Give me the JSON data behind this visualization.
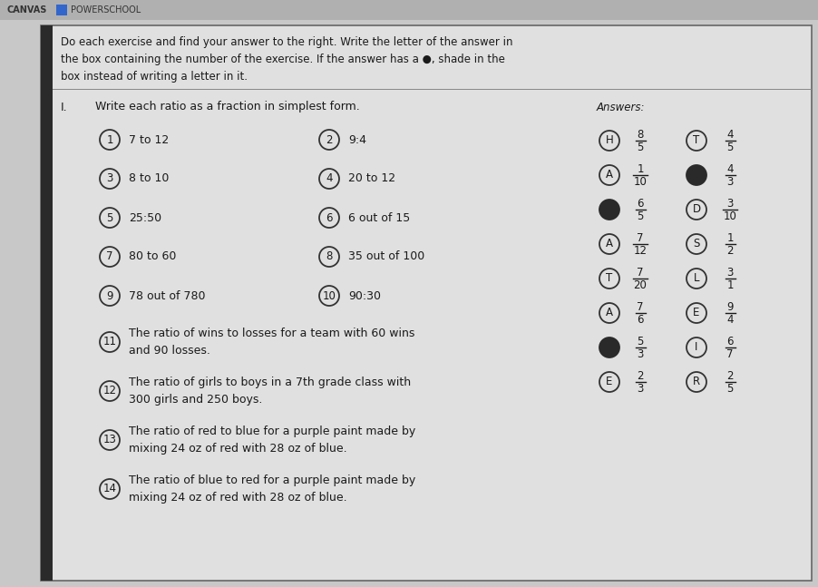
{
  "bg_color": "#c8c8c8",
  "header_bg": "#b8b8b8",
  "canvas_text": "CANVAS",
  "powerschool_text": "POWERSCHOOL",
  "instruction_text": "Do each exercise and find your answer to the right. Write the letter of the answer in\nthe box containing the number of the exercise. If the answer has a ●, shade in the\nbox instead of writing a letter in it.",
  "section_label": "I.",
  "section_text": "Write each ratio as a fraction in simplest form.",
  "answers_label": "Answers:",
  "exercises_left": [
    {
      "num": "1",
      "text": "7 to 12"
    },
    {
      "num": "3",
      "text": "8 to 10"
    },
    {
      "num": "5",
      "text": "25:50"
    },
    {
      "num": "7",
      "text": "80 to 60"
    },
    {
      "num": "9",
      "text": "78 out of 780"
    }
  ],
  "exercises_right": [
    {
      "num": "2",
      "text": "9:4"
    },
    {
      "num": "4",
      "text": "20 to 12"
    },
    {
      "num": "6",
      "text": "6 out of 15"
    },
    {
      "num": "8",
      "text": "35 out of 100"
    },
    {
      "num": "10",
      "text": "90:30"
    }
  ],
  "exercises_long": [
    {
      "num": "11",
      "text": "The ratio of wins to losses for a team with 60 wins\nand 90 losses."
    },
    {
      "num": "12",
      "text": "The ratio of girls to boys in a 7th grade class with\n300 girls and 250 boys."
    },
    {
      "num": "13",
      "text": "The ratio of red to blue for a purple paint made by\nmixing 24 oz of red with 28 oz of blue."
    },
    {
      "num": "14",
      "text": "The ratio of blue to red for a purple paint made by\nmixing 24 oz of red with 28 oz of blue."
    }
  ],
  "answers_col1": [
    {
      "letter": "H",
      "shade": false,
      "num": "8",
      "den": "5"
    },
    {
      "letter": "A",
      "shade": false,
      "num": "1",
      "den": "10"
    },
    {
      "letter": "",
      "shade": true,
      "num": "6",
      "den": "5"
    },
    {
      "letter": "A",
      "shade": false,
      "num": "7",
      "den": "12"
    },
    {
      "letter": "T",
      "shade": false,
      "num": "7",
      "den": "20"
    },
    {
      "letter": "A",
      "shade": false,
      "num": "7",
      "den": "6"
    },
    {
      "letter": "",
      "shade": true,
      "num": "5",
      "den": "3"
    },
    {
      "letter": "E",
      "shade": false,
      "num": "2",
      "den": "3"
    }
  ],
  "answers_col2": [
    {
      "letter": "T",
      "shade": false,
      "num": "4",
      "den": "5"
    },
    {
      "letter": "",
      "shade": true,
      "num": "4",
      "den": "3"
    },
    {
      "letter": "D",
      "shade": false,
      "num": "3",
      "den": "10"
    },
    {
      "letter": "S",
      "shade": false,
      "num": "1",
      "den": "2"
    },
    {
      "letter": "L",
      "shade": false,
      "num": "3",
      "den": "1"
    },
    {
      "letter": "E",
      "shade": false,
      "num": "9",
      "den": "4"
    },
    {
      "letter": "I",
      "shade": false,
      "num": "6",
      "den": "7"
    },
    {
      "letter": "R",
      "shade": false,
      "num": "2",
      "den": "5"
    }
  ]
}
